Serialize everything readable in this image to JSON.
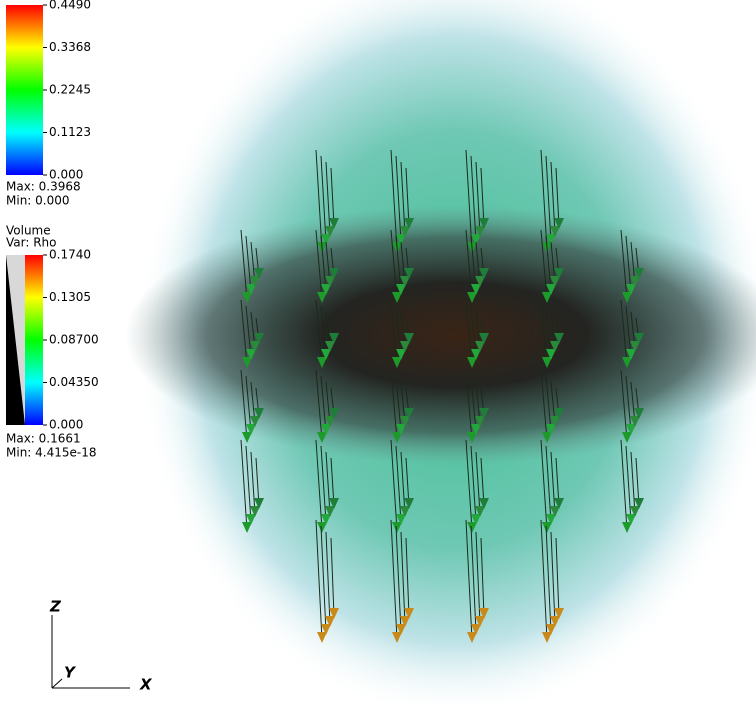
{
  "legend_vector": {
    "ticks": [
      "0.4490",
      "0.3368",
      "0.2245",
      "0.1123",
      "0.000"
    ],
    "max": "Max:  0.3968",
    "min": "Min:  0.000"
  },
  "legend_volume": {
    "title": "Volume",
    "variable": "Var: Rho",
    "ticks": [
      "0.1740",
      "0.1305",
      "0.08700",
      "0.04350",
      "0.000"
    ],
    "max": "Max:  0.1661",
    "min": "Min:  4.415e-18"
  },
  "axes": {
    "z": "Z",
    "y": "Y",
    "x": "X"
  }
}
